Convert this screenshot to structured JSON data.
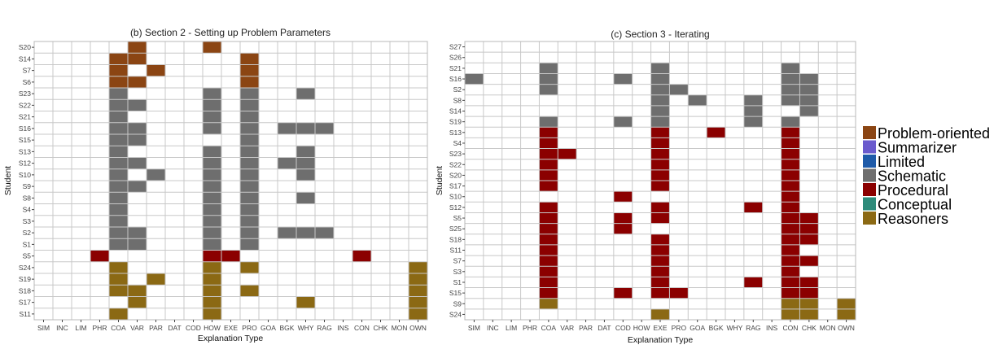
{
  "colors": {
    "Problem-oriented": "#8B4513",
    "Summarizer": "#6A5ACD",
    "Limited": "#1E5AA8",
    "Schematic": "#6E6E6E",
    "Procedural": "#8B0000",
    "Conceptual": "#2E8B7A",
    "Reasoners": "#8B6914"
  },
  "legend": {
    "entries": [
      "Problem-oriented",
      "Summarizer",
      "Limited",
      "Schematic",
      "Procedural",
      "Conceptual",
      "Reasoners"
    ],
    "placement": "right"
  },
  "chart_data": [
    {
      "type": "heatmap",
      "title": "(b) Section 2 - Setting up Problem Parameters",
      "xlabel": "Explanation Type",
      "ylabel": "Student",
      "grid": true,
      "x": [
        "SIM",
        "INC",
        "LIM",
        "PHR",
        "COA",
        "VAR",
        "PAR",
        "DAT",
        "COD",
        "HOW",
        "EXE",
        "PRO",
        "GOA",
        "BGK",
        "WHY",
        "RAG",
        "INS",
        "CON",
        "CHK",
        "MON",
        "OWN"
      ],
      "y": [
        "S20",
        "S14",
        "S7",
        "S6",
        "S23",
        "S22",
        "S21",
        "S16",
        "S15",
        "S13",
        "S12",
        "S10",
        "S9",
        "S8",
        "S4",
        "S3",
        "S2",
        "S1",
        "S5",
        "S24",
        "S19",
        "S18",
        "S17",
        "S11"
      ],
      "cells": [
        [
          "S20",
          "VAR",
          "Problem-oriented"
        ],
        [
          "S20",
          "HOW",
          "Problem-oriented"
        ],
        [
          "S14",
          "COA",
          "Problem-oriented"
        ],
        [
          "S14",
          "VAR",
          "Problem-oriented"
        ],
        [
          "S14",
          "PRO",
          "Problem-oriented"
        ],
        [
          "S7",
          "COA",
          "Problem-oriented"
        ],
        [
          "S7",
          "PAR",
          "Problem-oriented"
        ],
        [
          "S7",
          "PRO",
          "Problem-oriented"
        ],
        [
          "S6",
          "COA",
          "Problem-oriented"
        ],
        [
          "S6",
          "VAR",
          "Problem-oriented"
        ],
        [
          "S6",
          "PRO",
          "Problem-oriented"
        ],
        [
          "S23",
          "COA",
          "Schematic"
        ],
        [
          "S23",
          "HOW",
          "Schematic"
        ],
        [
          "S23",
          "PRO",
          "Schematic"
        ],
        [
          "S23",
          "WHY",
          "Schematic"
        ],
        [
          "S22",
          "COA",
          "Schematic"
        ],
        [
          "S22",
          "VAR",
          "Schematic"
        ],
        [
          "S22",
          "HOW",
          "Schematic"
        ],
        [
          "S22",
          "PRO",
          "Schematic"
        ],
        [
          "S21",
          "COA",
          "Schematic"
        ],
        [
          "S21",
          "HOW",
          "Schematic"
        ],
        [
          "S21",
          "PRO",
          "Schematic"
        ],
        [
          "S16",
          "COA",
          "Schematic"
        ],
        [
          "S16",
          "VAR",
          "Schematic"
        ],
        [
          "S16",
          "HOW",
          "Schematic"
        ],
        [
          "S16",
          "PRO",
          "Schematic"
        ],
        [
          "S16",
          "BGK",
          "Schematic"
        ],
        [
          "S16",
          "WHY",
          "Schematic"
        ],
        [
          "S16",
          "RAG",
          "Schematic"
        ],
        [
          "S15",
          "COA",
          "Schematic"
        ],
        [
          "S15",
          "VAR",
          "Schematic"
        ],
        [
          "S15",
          "PRO",
          "Schematic"
        ],
        [
          "S13",
          "COA",
          "Schematic"
        ],
        [
          "S13",
          "HOW",
          "Schematic"
        ],
        [
          "S13",
          "PRO",
          "Schematic"
        ],
        [
          "S13",
          "WHY",
          "Schematic"
        ],
        [
          "S12",
          "COA",
          "Schematic"
        ],
        [
          "S12",
          "VAR",
          "Schematic"
        ],
        [
          "S12",
          "HOW",
          "Schematic"
        ],
        [
          "S12",
          "PRO",
          "Schematic"
        ],
        [
          "S12",
          "BGK",
          "Schematic"
        ],
        [
          "S12",
          "WHY",
          "Schematic"
        ],
        [
          "S10",
          "COA",
          "Schematic"
        ],
        [
          "S10",
          "PAR",
          "Schematic"
        ],
        [
          "S10",
          "HOW",
          "Schematic"
        ],
        [
          "S10",
          "PRO",
          "Schematic"
        ],
        [
          "S10",
          "WHY",
          "Schematic"
        ],
        [
          "S9",
          "COA",
          "Schematic"
        ],
        [
          "S9",
          "VAR",
          "Schematic"
        ],
        [
          "S9",
          "HOW",
          "Schematic"
        ],
        [
          "S9",
          "PRO",
          "Schematic"
        ],
        [
          "S8",
          "COA",
          "Schematic"
        ],
        [
          "S8",
          "HOW",
          "Schematic"
        ],
        [
          "S8",
          "PRO",
          "Schematic"
        ],
        [
          "S8",
          "WHY",
          "Schematic"
        ],
        [
          "S4",
          "COA",
          "Schematic"
        ],
        [
          "S4",
          "HOW",
          "Schematic"
        ],
        [
          "S4",
          "PRO",
          "Schematic"
        ],
        [
          "S3",
          "COA",
          "Schematic"
        ],
        [
          "S3",
          "HOW",
          "Schematic"
        ],
        [
          "S3",
          "PRO",
          "Schematic"
        ],
        [
          "S2",
          "COA",
          "Schematic"
        ],
        [
          "S2",
          "VAR",
          "Schematic"
        ],
        [
          "S2",
          "HOW",
          "Schematic"
        ],
        [
          "S2",
          "PRO",
          "Schematic"
        ],
        [
          "S2",
          "BGK",
          "Schematic"
        ],
        [
          "S2",
          "WHY",
          "Schematic"
        ],
        [
          "S2",
          "RAG",
          "Schematic"
        ],
        [
          "S1",
          "COA",
          "Schematic"
        ],
        [
          "S1",
          "VAR",
          "Schematic"
        ],
        [
          "S1",
          "HOW",
          "Schematic"
        ],
        [
          "S1",
          "PRO",
          "Schematic"
        ],
        [
          "S5",
          "PHR",
          "Procedural"
        ],
        [
          "S5",
          "HOW",
          "Procedural"
        ],
        [
          "S5",
          "EXE",
          "Procedural"
        ],
        [
          "S5",
          "CON",
          "Procedural"
        ],
        [
          "S24",
          "COA",
          "Reasoners"
        ],
        [
          "S24",
          "HOW",
          "Reasoners"
        ],
        [
          "S24",
          "PRO",
          "Reasoners"
        ],
        [
          "S24",
          "OWN",
          "Reasoners"
        ],
        [
          "S19",
          "COA",
          "Reasoners"
        ],
        [
          "S19",
          "PAR",
          "Reasoners"
        ],
        [
          "S19",
          "HOW",
          "Reasoners"
        ],
        [
          "S19",
          "OWN",
          "Reasoners"
        ],
        [
          "S18",
          "COA",
          "Reasoners"
        ],
        [
          "S18",
          "VAR",
          "Reasoners"
        ],
        [
          "S18",
          "HOW",
          "Reasoners"
        ],
        [
          "S18",
          "PRO",
          "Reasoners"
        ],
        [
          "S18",
          "OWN",
          "Reasoners"
        ],
        [
          "S17",
          "VAR",
          "Reasoners"
        ],
        [
          "S17",
          "HOW",
          "Reasoners"
        ],
        [
          "S17",
          "WHY",
          "Reasoners"
        ],
        [
          "S17",
          "OWN",
          "Reasoners"
        ],
        [
          "S11",
          "COA",
          "Reasoners"
        ],
        [
          "S11",
          "HOW",
          "Reasoners"
        ],
        [
          "S11",
          "OWN",
          "Reasoners"
        ]
      ]
    },
    {
      "type": "heatmap",
      "title": "(c) Section 3 - Iterating",
      "xlabel": "Explanation Type",
      "ylabel": "Student",
      "grid": true,
      "x": [
        "SIM",
        "INC",
        "LIM",
        "PHR",
        "COA",
        "VAR",
        "PAR",
        "DAT",
        "COD",
        "HOW",
        "EXE",
        "PRO",
        "GOA",
        "BGK",
        "WHY",
        "RAG",
        "INS",
        "CON",
        "CHK",
        "MON",
        "OWN"
      ],
      "y": [
        "S27",
        "S26",
        "S21",
        "S16",
        "S2",
        "S8",
        "S14",
        "S19",
        "S13",
        "S4",
        "S23",
        "S22",
        "S20",
        "S17",
        "S10",
        "S12",
        "S5",
        "S25",
        "S18",
        "S11",
        "S7",
        "S3",
        "S1",
        "S15",
        "S9",
        "S24"
      ],
      "cells": [
        [
          "S21",
          "COA",
          "Schematic"
        ],
        [
          "S21",
          "EXE",
          "Schematic"
        ],
        [
          "S21",
          "CON",
          "Schematic"
        ],
        [
          "S16",
          "SIM",
          "Schematic"
        ],
        [
          "S16",
          "COA",
          "Schematic"
        ],
        [
          "S16",
          "COD",
          "Schematic"
        ],
        [
          "S16",
          "EXE",
          "Schematic"
        ],
        [
          "S16",
          "CON",
          "Schematic"
        ],
        [
          "S16",
          "CHK",
          "Schematic"
        ],
        [
          "S2",
          "COA",
          "Schematic"
        ],
        [
          "S2",
          "EXE",
          "Schematic"
        ],
        [
          "S2",
          "PRO",
          "Schematic"
        ],
        [
          "S2",
          "CON",
          "Schematic"
        ],
        [
          "S2",
          "CHK",
          "Schematic"
        ],
        [
          "S8",
          "EXE",
          "Schematic"
        ],
        [
          "S8",
          "GOA",
          "Schematic"
        ],
        [
          "S8",
          "RAG",
          "Schematic"
        ],
        [
          "S8",
          "CON",
          "Schematic"
        ],
        [
          "S8",
          "CHK",
          "Schematic"
        ],
        [
          "S14",
          "EXE",
          "Schematic"
        ],
        [
          "S14",
          "RAG",
          "Schematic"
        ],
        [
          "S14",
          "CHK",
          "Schematic"
        ],
        [
          "S19",
          "COA",
          "Schematic"
        ],
        [
          "S19",
          "COD",
          "Schematic"
        ],
        [
          "S19",
          "EXE",
          "Schematic"
        ],
        [
          "S19",
          "RAG",
          "Schematic"
        ],
        [
          "S19",
          "CON",
          "Schematic"
        ],
        [
          "S13",
          "COA",
          "Procedural"
        ],
        [
          "S13",
          "EXE",
          "Procedural"
        ],
        [
          "S13",
          "BGK",
          "Procedural"
        ],
        [
          "S13",
          "CON",
          "Procedural"
        ],
        [
          "S4",
          "COA",
          "Procedural"
        ],
        [
          "S4",
          "EXE",
          "Procedural"
        ],
        [
          "S4",
          "CON",
          "Procedural"
        ],
        [
          "S23",
          "COA",
          "Procedural"
        ],
        [
          "S23",
          "VAR",
          "Procedural"
        ],
        [
          "S23",
          "EXE",
          "Procedural"
        ],
        [
          "S23",
          "CON",
          "Procedural"
        ],
        [
          "S22",
          "COA",
          "Procedural"
        ],
        [
          "S22",
          "EXE",
          "Procedural"
        ],
        [
          "S22",
          "CON",
          "Procedural"
        ],
        [
          "S20",
          "COA",
          "Procedural"
        ],
        [
          "S20",
          "EXE",
          "Procedural"
        ],
        [
          "S20",
          "CON",
          "Procedural"
        ],
        [
          "S17",
          "COA",
          "Procedural"
        ],
        [
          "S17",
          "EXE",
          "Procedural"
        ],
        [
          "S17",
          "CON",
          "Procedural"
        ],
        [
          "S10",
          "COD",
          "Procedural"
        ],
        [
          "S10",
          "CON",
          "Procedural"
        ],
        [
          "S12",
          "COA",
          "Procedural"
        ],
        [
          "S12",
          "EXE",
          "Procedural"
        ],
        [
          "S12",
          "RAG",
          "Procedural"
        ],
        [
          "S12",
          "CON",
          "Procedural"
        ],
        [
          "S5",
          "COA",
          "Procedural"
        ],
        [
          "S5",
          "COD",
          "Procedural"
        ],
        [
          "S5",
          "EXE",
          "Procedural"
        ],
        [
          "S5",
          "CON",
          "Procedural"
        ],
        [
          "S5",
          "CHK",
          "Procedural"
        ],
        [
          "S25",
          "COA",
          "Procedural"
        ],
        [
          "S25",
          "COD",
          "Procedural"
        ],
        [
          "S25",
          "CON",
          "Procedural"
        ],
        [
          "S25",
          "CHK",
          "Procedural"
        ],
        [
          "S18",
          "COA",
          "Procedural"
        ],
        [
          "S18",
          "EXE",
          "Procedural"
        ],
        [
          "S18",
          "CON",
          "Procedural"
        ],
        [
          "S18",
          "CHK",
          "Procedural"
        ],
        [
          "S11",
          "COA",
          "Procedural"
        ],
        [
          "S11",
          "EXE",
          "Procedural"
        ],
        [
          "S11",
          "CON",
          "Procedural"
        ],
        [
          "S7",
          "COA",
          "Procedural"
        ],
        [
          "S7",
          "EXE",
          "Procedural"
        ],
        [
          "S7",
          "CON",
          "Procedural"
        ],
        [
          "S7",
          "CHK",
          "Procedural"
        ],
        [
          "S3",
          "COA",
          "Procedural"
        ],
        [
          "S3",
          "EXE",
          "Procedural"
        ],
        [
          "S3",
          "CON",
          "Procedural"
        ],
        [
          "S1",
          "COA",
          "Procedural"
        ],
        [
          "S1",
          "EXE",
          "Procedural"
        ],
        [
          "S1",
          "RAG",
          "Procedural"
        ],
        [
          "S1",
          "CON",
          "Procedural"
        ],
        [
          "S1",
          "CHK",
          "Procedural"
        ],
        [
          "S15",
          "COA",
          "Procedural"
        ],
        [
          "S15",
          "COD",
          "Procedural"
        ],
        [
          "S15",
          "EXE",
          "Procedural"
        ],
        [
          "S15",
          "PRO",
          "Procedural"
        ],
        [
          "S15",
          "CON",
          "Procedural"
        ],
        [
          "S15",
          "CHK",
          "Procedural"
        ],
        [
          "S9",
          "COA",
          "Reasoners"
        ],
        [
          "S9",
          "CON",
          "Reasoners"
        ],
        [
          "S9",
          "CHK",
          "Reasoners"
        ],
        [
          "S9",
          "OWN",
          "Reasoners"
        ],
        [
          "S24",
          "EXE",
          "Reasoners"
        ],
        [
          "S24",
          "CON",
          "Reasoners"
        ],
        [
          "S24",
          "CHK",
          "Reasoners"
        ],
        [
          "S24",
          "OWN",
          "Reasoners"
        ]
      ]
    }
  ]
}
